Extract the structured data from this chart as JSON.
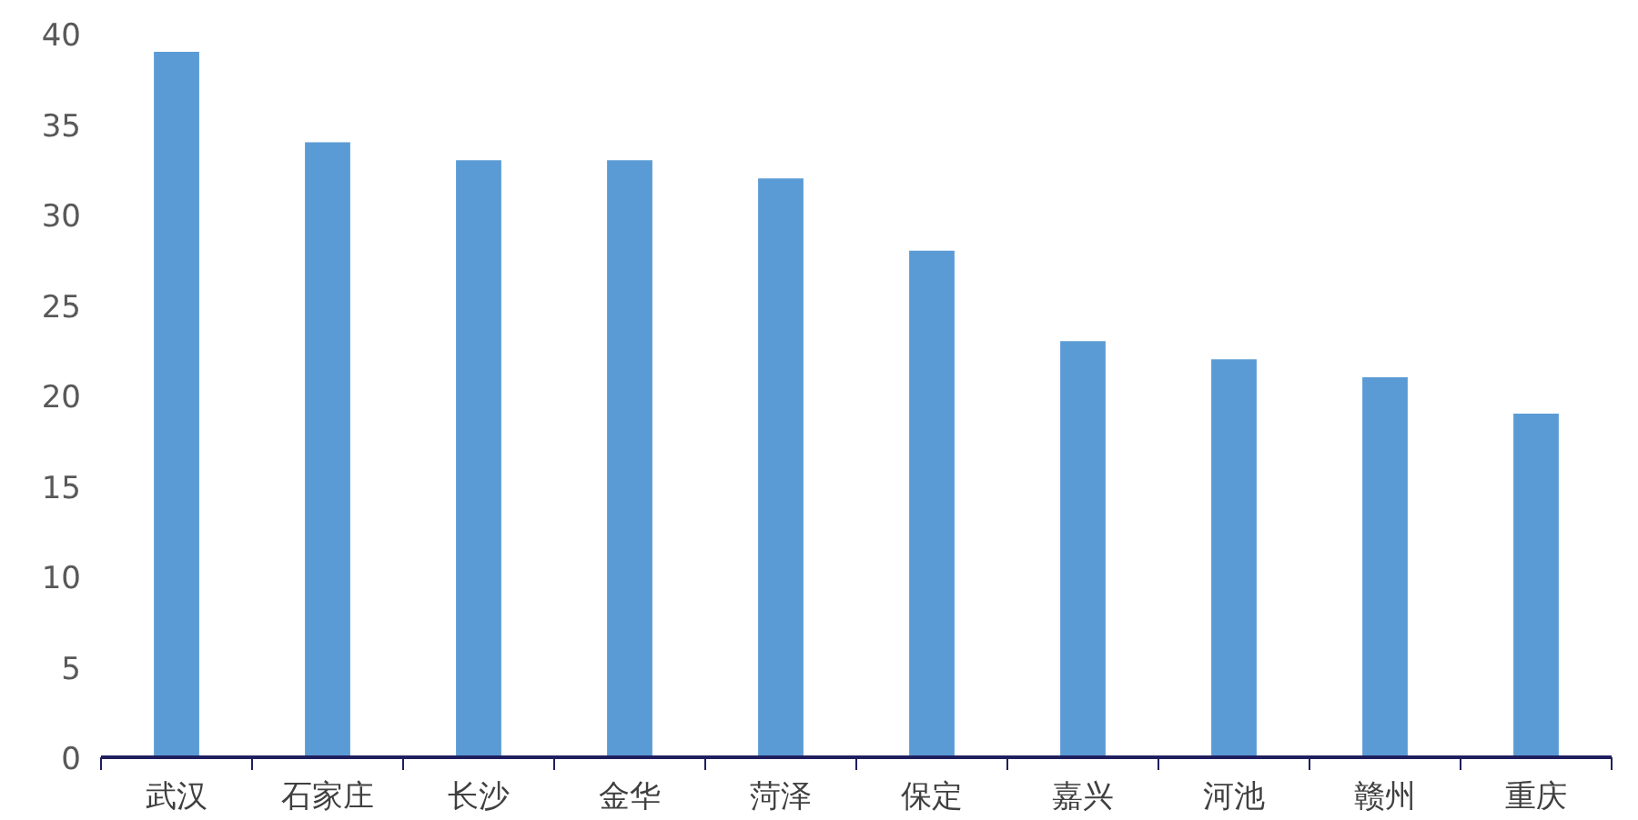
{
  "chart_data": {
    "type": "bar",
    "categories": [
      "武汉",
      "石家庄",
      "长沙",
      "金华",
      "菏泽",
      "保定",
      "嘉兴",
      "河池",
      "赣州",
      "重庆"
    ],
    "values": [
      39,
      34,
      33,
      33,
      32,
      28,
      23,
      22,
      21,
      19
    ],
    "color": "#5b9bd5",
    "ylim": [
      0,
      40
    ],
    "yticks": [
      0,
      5,
      10,
      15,
      20,
      25,
      30,
      35,
      40
    ],
    "grid": false
  }
}
